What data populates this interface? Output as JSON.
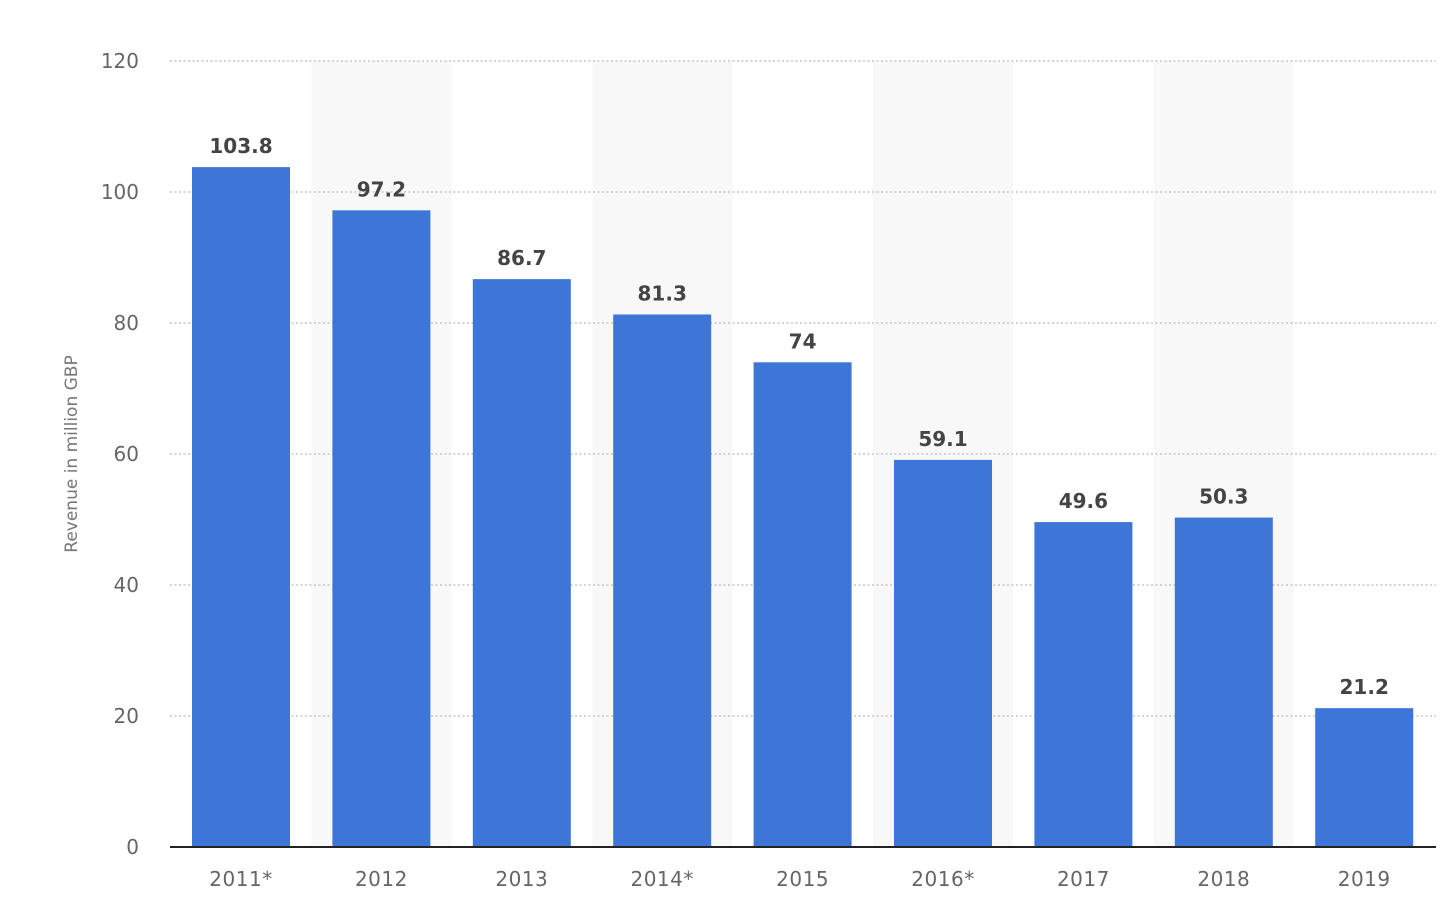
{
  "chart_data": {
    "type": "bar",
    "categories": [
      "2011*",
      "2012",
      "2013",
      "2014*",
      "2015",
      "2016*",
      "2017",
      "2018",
      "2019"
    ],
    "values": [
      103.8,
      97.2,
      86.7,
      81.3,
      74,
      59.1,
      49.6,
      50.3,
      21.2
    ],
    "value_labels": [
      "103.8",
      "97.2",
      "86.7",
      "81.3",
      "74",
      "59.1",
      "49.6",
      "50.3",
      "21.2"
    ],
    "title": "",
    "xlabel": "",
    "ylabel": "Revenue in million GBP",
    "ylim": [
      0,
      120
    ],
    "yticks": [
      0,
      20,
      40,
      60,
      80,
      100,
      120
    ],
    "grid": true,
    "alternating_bands": true,
    "colors": {
      "bar": "#3d76d6",
      "band": "#f8f8f8",
      "gridline": "#bbbbbb",
      "axis": "#222222"
    }
  }
}
